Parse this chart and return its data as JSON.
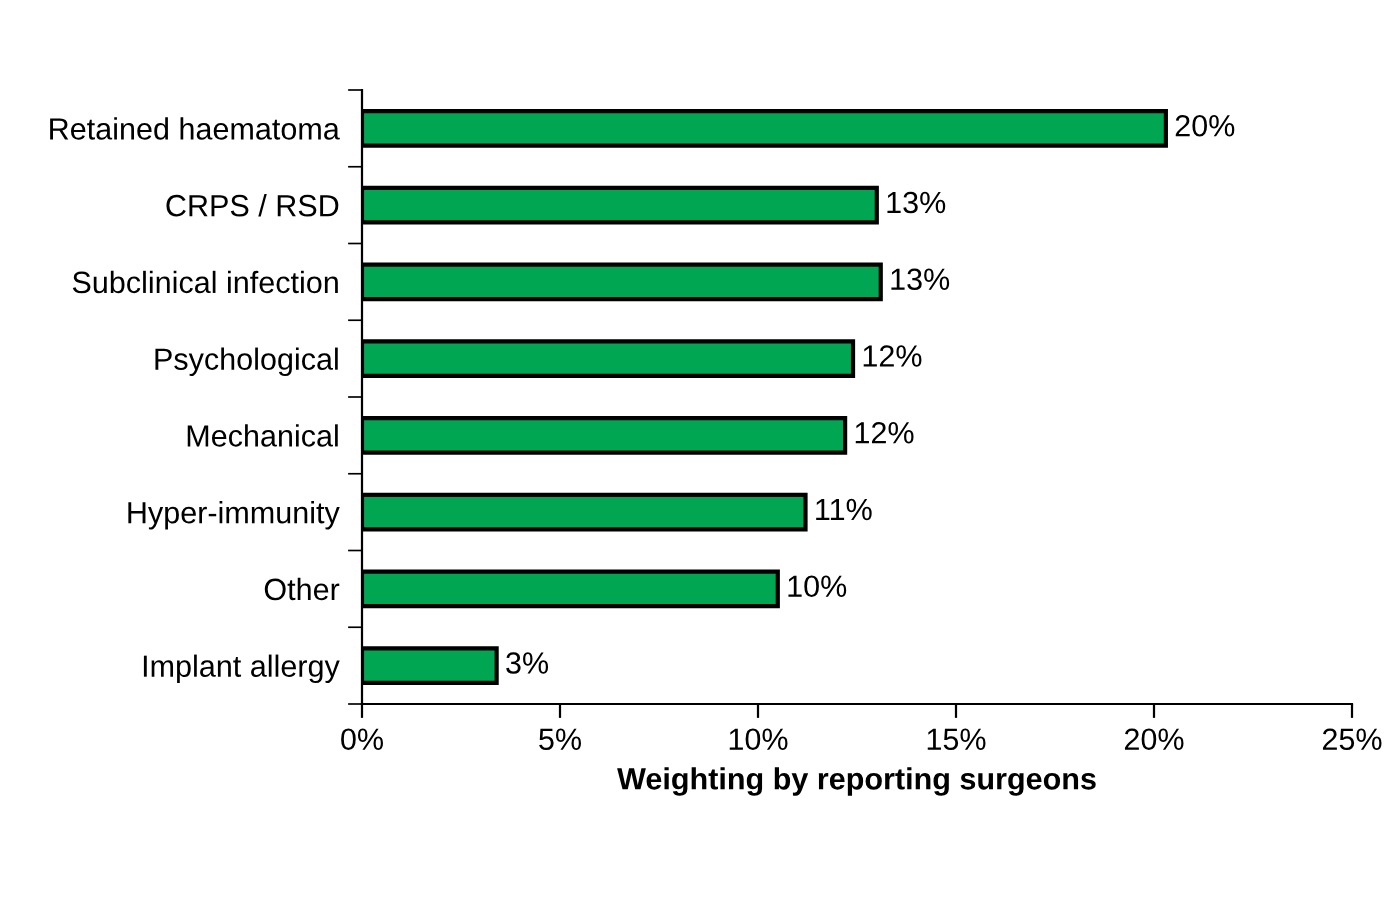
{
  "chart_data": {
    "type": "bar",
    "orientation": "horizontal",
    "xlabel": "Weighting by reporting surgeons",
    "categories": [
      "Retained haematoma",
      "CRPS / RSD",
      "Subclinical infection",
      "Psychological",
      "Mechanical",
      "Hyper-immunity",
      "Other",
      "Implant allergy"
    ],
    "values": [
      20.3,
      13.0,
      13.1,
      12.4,
      12.2,
      11.2,
      10.5,
      3.4
    ],
    "value_labels": [
      "20%",
      "13%",
      "13%",
      "12%",
      "12%",
      "11%",
      "10%",
      "3%"
    ],
    "color": "#00a651",
    "xlim": [
      0,
      25
    ],
    "xticks": [
      {
        "value": 0,
        "label": "0%"
      },
      {
        "value": 5,
        "label": "5%"
      },
      {
        "value": 10,
        "label": "10%"
      },
      {
        "value": 15,
        "label": "15%"
      },
      {
        "value": 20,
        "label": "20%"
      },
      {
        "value": 25,
        "label": "25%"
      }
    ],
    "grid": false,
    "legend": false
  }
}
